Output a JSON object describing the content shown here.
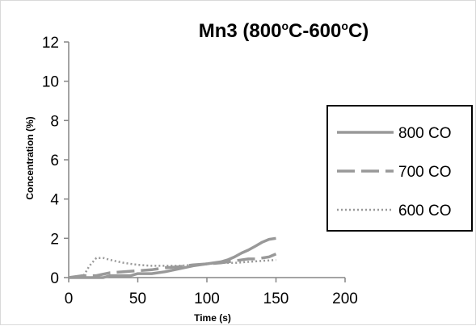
{
  "chart_data": {
    "type": "line",
    "title": {
      "prefix": "Mn3 (800",
      "sup1": "o",
      "mid": "C-600",
      "sup2": "o",
      "suffix": "C)"
    },
    "xlabel": "Time (s)",
    "ylabel": "Concentration (%)",
    "xlim": [
      0,
      200
    ],
    "ylim": [
      0,
      12
    ],
    "xticks": [
      0,
      50,
      100,
      150,
      200
    ],
    "yticks": [
      0,
      2,
      4,
      6,
      8,
      10,
      12
    ],
    "grid": false,
    "legend_position": "right",
    "series": [
      {
        "name": "800 CO",
        "color": "#999999",
        "style": "solid",
        "x": [
          0,
          10,
          25,
          30,
          45,
          50,
          60,
          70,
          80,
          90,
          100,
          110,
          115,
          120,
          125,
          130,
          135,
          140,
          145,
          150
        ],
        "y": [
          0,
          0,
          0,
          0.1,
          0.1,
          0.2,
          0.2,
          0.3,
          0.45,
          0.6,
          0.7,
          0.8,
          0.9,
          1.05,
          1.25,
          1.4,
          1.6,
          1.8,
          1.95,
          2.0
        ]
      },
      {
        "name": "700 CO",
        "color": "#999999",
        "style": "dashed",
        "x": [
          0,
          10,
          20,
          30,
          40,
          50,
          60,
          70,
          80,
          90,
          100,
          110,
          120,
          130,
          135,
          140,
          145,
          150
        ],
        "y": [
          0,
          0.1,
          0.1,
          0.25,
          0.3,
          0.35,
          0.4,
          0.5,
          0.55,
          0.65,
          0.7,
          0.75,
          0.85,
          0.95,
          0.95,
          1.0,
          1.05,
          1.2
        ]
      },
      {
        "name": "600 CO",
        "color": "#999999",
        "style": "dotted",
        "x": [
          0,
          10,
          15,
          20,
          25,
          30,
          40,
          50,
          60,
          70,
          80,
          90,
          100,
          110,
          120,
          130,
          140,
          150
        ],
        "y": [
          0,
          0,
          0.6,
          1.0,
          1.0,
          0.9,
          0.75,
          0.65,
          0.6,
          0.6,
          0.6,
          0.65,
          0.7,
          0.75,
          0.75,
          0.8,
          0.85,
          0.9
        ]
      }
    ]
  }
}
